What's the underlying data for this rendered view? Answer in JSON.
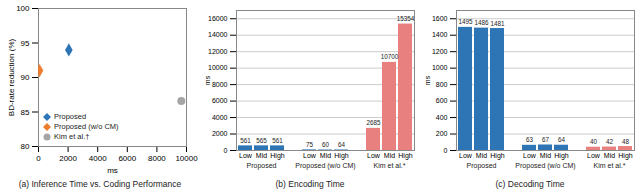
{
  "chart_data": [
    {
      "type": "scatter",
      "title": "(a) Inference Time vs. Coding Performance",
      "x_label": "ms",
      "y_label": "BD-rate reduction (%)",
      "xlim": [
        0,
        10000
      ],
      "xticks": [
        0,
        2000,
        4000,
        6000,
        8000,
        10000
      ],
      "ylim": [
        80,
        100
      ],
      "yticks": [
        80,
        85,
        90,
        95,
        100
      ],
      "grid": false,
      "legend": "lower left",
      "series": [
        {
          "name": "Proposed",
          "color": "#2e75b6",
          "marker": "diamond",
          "x": [
            2050
          ],
          "values": [
            94
          ]
        },
        {
          "name": "Proposed (w/o CM)",
          "color": "#ed7d31",
          "marker": "diamond",
          "x": [
            70
          ],
          "values": [
            91
          ]
        },
        {
          "name": "Kim et al.†",
          "color": "#a5a5a5",
          "marker": "circle",
          "x": [
            9650
          ],
          "values": [
            86.6
          ]
        }
      ]
    },
    {
      "type": "bar",
      "title": "(b) Encoding Time",
      "y_label": "ms",
      "categories": [
        "Low",
        "Mid",
        "High"
      ],
      "ylim": [
        0,
        17000
      ],
      "yticks": [
        0,
        2000,
        4000,
        6000,
        8000,
        10000,
        12000,
        14000,
        16000
      ],
      "grid": true,
      "data_labels": true,
      "series": [
        {
          "name": "Proposed",
          "color": "#2e75b6",
          "values": [
            561,
            565,
            561
          ]
        },
        {
          "name": "Proposed (w/o CM)",
          "color": "#2e75b6",
          "values": [
            75,
            60,
            64
          ]
        },
        {
          "name": "Kim et al.*",
          "color": "#e88080",
          "values": [
            2685,
            10700,
            15354
          ]
        }
      ]
    },
    {
      "type": "bar",
      "title": "(c) Decoding Time",
      "y_label": "ms",
      "categories": [
        "Low",
        "Mid",
        "High"
      ],
      "ylim": [
        0,
        1700
      ],
      "yticks": [
        0,
        200,
        400,
        600,
        800,
        1000,
        1200,
        1400,
        1600
      ],
      "grid": true,
      "data_labels": true,
      "series": [
        {
          "name": "Proposed",
          "color": "#2e75b6",
          "values": [
            1495,
            1486,
            1481
          ]
        },
        {
          "name": "Proposed (w/o CM)",
          "color": "#2e75b6",
          "values": [
            63,
            67,
            64
          ]
        },
        {
          "name": "Kim et al.*",
          "color": "#e88080",
          "values": [
            40,
            42,
            48
          ]
        }
      ]
    }
  ]
}
